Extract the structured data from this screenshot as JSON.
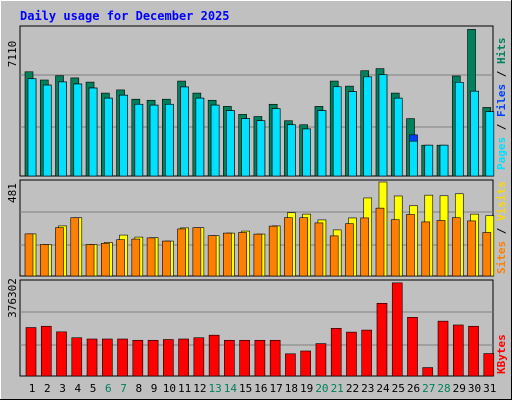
{
  "title": "Daily usage for December 2025",
  "colors": {
    "hits": "#00805c",
    "files": "#0040ff",
    "pages": "#00e0ff",
    "visits": "#ffff00",
    "sites": "#ff8000",
    "kbytes": "#ff0000",
    "title": "#0000ff",
    "weekend_label": "#00805c",
    "panel_bg": "#c0c0c0"
  },
  "panel_labels": {
    "top": {
      "pages": "Pages",
      "files": "Files",
      "hits": "Hits",
      "sep1": " / ",
      "sep2": " / "
    },
    "middle": {
      "sites": "Sites",
      "visits": "Visits",
      "sep": " / "
    },
    "bottom": {
      "kbytes": "KBytes"
    }
  },
  "chart_data": [
    {
      "type": "bar",
      "panel": "hits-files-pages",
      "ymax_label": "7110",
      "ylim": [
        0,
        7110
      ],
      "categories": [
        "1",
        "2",
        "3",
        "4",
        "5",
        "6",
        "7",
        "8",
        "9",
        "10",
        "11",
        "12",
        "13",
        "14",
        "15",
        "16",
        "17",
        "18",
        "19",
        "20",
        "21",
        "22",
        "23",
        "24",
        "25",
        "26",
        "27",
        "28",
        "29",
        "30",
        "31"
      ],
      "weekend_days": [
        "6",
        "7",
        "13",
        "14",
        "20",
        "21",
        "27",
        "28"
      ],
      "series": [
        {
          "name": "Hits",
          "values": [
            4940,
            4550,
            4750,
            4650,
            4450,
            3930,
            4080,
            3640,
            3590,
            3640,
            4500,
            3930,
            3590,
            3300,
            2920,
            2820,
            3400,
            2620,
            2430,
            3300,
            4500,
            4260,
            4990,
            5090,
            3930,
            2720,
            1460,
            1460,
            4740,
            6950,
            3250
          ]
        },
        {
          "name": "Files",
          "values": [
            4610,
            4310,
            4460,
            4360,
            4170,
            3690,
            3830,
            3400,
            3360,
            3400,
            4220,
            3690,
            3360,
            3100,
            2720,
            2620,
            3190,
            2430,
            2230,
            3100,
            4230,
            4000,
            4700,
            4800,
            3690,
            1950,
            1460,
            1460,
            4440,
            4020,
            3050
          ]
        },
        {
          "name": "Pages",
          "values": [
            4610,
            4310,
            4460,
            4360,
            4170,
            3690,
            3830,
            3400,
            3360,
            3400,
            4220,
            3690,
            3360,
            3100,
            2720,
            2620,
            3190,
            2430,
            2230,
            3100,
            4230,
            4000,
            4700,
            4800,
            3690,
            1650,
            1460,
            1460,
            4440,
            4020,
            3050
          ]
        }
      ]
    },
    {
      "type": "bar",
      "panel": "visits-sites",
      "ymax_label": "481",
      "ylim": [
        0,
        481
      ],
      "categories": [
        "1",
        "2",
        "3",
        "4",
        "5",
        "6",
        "7",
        "8",
        "9",
        "10",
        "11",
        "12",
        "13",
        "14",
        "15",
        "16",
        "17",
        "18",
        "19",
        "20",
        "21",
        "22",
        "23",
        "24",
        "25",
        "26",
        "27",
        "28",
        "29",
        "30",
        "31"
      ],
      "series": [
        {
          "name": "Visits",
          "values": [
            211,
            158,
            251,
            292,
            158,
            168,
            205,
            195,
            192,
            175,
            241,
            242,
            202,
            215,
            225,
            210,
            251,
            317,
            310,
            281,
            231,
            291,
            391,
            471,
            401,
            352,
            405,
            402,
            412,
            310,
            302
          ]
        },
        {
          "name": "Sites",
          "values": [
            211,
            158,
            242,
            292,
            158,
            164,
            182,
            185,
            191,
            175,
            236,
            242,
            202,
            215,
            218,
            210,
            250,
            292,
            292,
            266,
            201,
            262,
            291,
            340,
            282,
            308,
            271,
            278,
            292,
            276,
            218
          ]
        }
      ]
    },
    {
      "type": "bar",
      "panel": "kbytes",
      "ymax_label": "376302",
      "ylim": [
        0,
        376302
      ],
      "categories": [
        "1",
        "2",
        "3",
        "4",
        "5",
        "6",
        "7",
        "8",
        "9",
        "10",
        "11",
        "12",
        "13",
        "14",
        "15",
        "16",
        "17",
        "18",
        "19",
        "20",
        "21",
        "22",
        "23",
        "24",
        "25",
        "26",
        "27",
        "28",
        "29",
        "30",
        "31"
      ],
      "series": [
        {
          "name": "KBytes",
          "values": [
            190000,
            195000,
            173000,
            150000,
            145000,
            145000,
            145000,
            140000,
            140000,
            143000,
            145000,
            150000,
            160000,
            140000,
            140000,
            140000,
            140000,
            87000,
            98000,
            127000,
            187000,
            172000,
            180000,
            285000,
            365000,
            230000,
            33000,
            215000,
            200000,
            195000,
            88000
          ]
        }
      ]
    }
  ]
}
